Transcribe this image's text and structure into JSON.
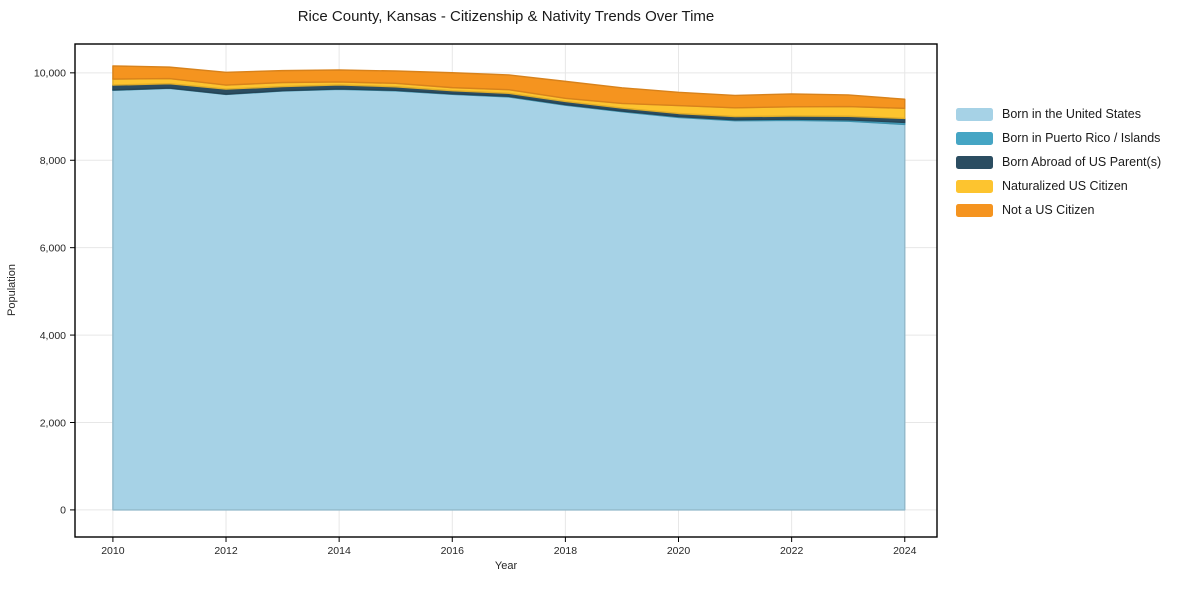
{
  "chart_data": {
    "type": "area",
    "stacked": true,
    "title": "Rice County, Kansas - Citizenship & Nativity Trends Over Time",
    "xlabel": "Year",
    "ylabel": "Population",
    "x": [
      2010,
      2011,
      2012,
      2013,
      2014,
      2015,
      2016,
      2017,
      2018,
      2019,
      2020,
      2021,
      2022,
      2023,
      2024
    ],
    "series": [
      {
        "name": "Born in the United States",
        "color": "#a6d2e6",
        "values": [
          9600,
          9645,
          9505,
          9585,
          9625,
          9590,
          9510,
          9450,
          9260,
          9110,
          8980,
          8905,
          8915,
          8895,
          8820
        ]
      },
      {
        "name": "Born in Puerto Rico / Islands",
        "color": "#45a5c4",
        "values": [
          8,
          8,
          8,
          8,
          8,
          10,
          12,
          12,
          15,
          15,
          20,
          22,
          25,
          32,
          46
        ]
      },
      {
        "name": "Born Abroad of US Parent(s)",
        "color": "#2b4d61",
        "values": [
          112,
          98,
          115,
          92,
          90,
          82,
          70,
          70,
          70,
          70,
          70,
          72,
          70,
          80,
          92
        ]
      },
      {
        "name": "Naturalized US Citizen",
        "color": "#fdc42f",
        "values": [
          138,
          118,
          92,
          94,
          70,
          78,
          70,
          82,
          72,
          105,
          182,
          202,
          212,
          222,
          230
        ]
      },
      {
        "name": "Not a US Citizen",
        "color": "#f5941f",
        "values": [
          300,
          262,
          292,
          272,
          272,
          282,
          340,
          338,
          388,
          358,
          302,
          282,
          295,
          265,
          208
        ]
      }
    ],
    "xticks": [
      2010,
      2012,
      2014,
      2016,
      2018,
      2020,
      2022,
      2024
    ],
    "yticks": [
      0,
      2000,
      4000,
      6000,
      8000,
      10000
    ],
    "ytick_labels": [
      "0",
      "2,000",
      "4,000",
      "6,000",
      "8,000",
      "10,000"
    ],
    "xlim": [
      2009.33,
      2024.57
    ],
    "ylim": [
      -620,
      10660
    ],
    "grid": true,
    "grid_color": "#e7e7e7",
    "axis_color": "#000000",
    "legend_position": "right"
  }
}
